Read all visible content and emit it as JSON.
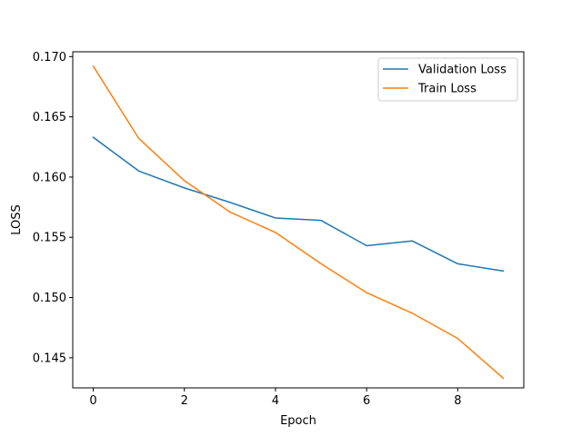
{
  "chart_data": {
    "type": "line",
    "title": "",
    "xlabel": "Epoch",
    "ylabel": "LOSS",
    "x": [
      0,
      1,
      2,
      3,
      4,
      5,
      6,
      7,
      8,
      9
    ],
    "xlim": [
      -0.45,
      9.45
    ],
    "ylim": [
      0.1425,
      0.1704
    ],
    "xticks": [
      0,
      2,
      4,
      6,
      8
    ],
    "yticks": [
      0.145,
      0.15,
      0.155,
      0.16,
      0.165,
      0.17
    ],
    "ytick_labels": [
      "0.145",
      "0.150",
      "0.155",
      "0.160",
      "0.165",
      "0.170"
    ],
    "grid": false,
    "legend": "top-right",
    "series": [
      {
        "name": "Validation Loss",
        "color": "#1f77b4",
        "values": [
          0.1633,
          0.1605,
          0.1591,
          0.1579,
          0.1566,
          0.1564,
          0.1543,
          0.1547,
          0.1528,
          0.1522
        ]
      },
      {
        "name": "Train Loss",
        "color": "#ff7f0e",
        "values": [
          0.1692,
          0.1632,
          0.1597,
          0.1571,
          0.1554,
          0.1528,
          0.1504,
          0.1487,
          0.1466,
          0.1433
        ]
      }
    ]
  }
}
